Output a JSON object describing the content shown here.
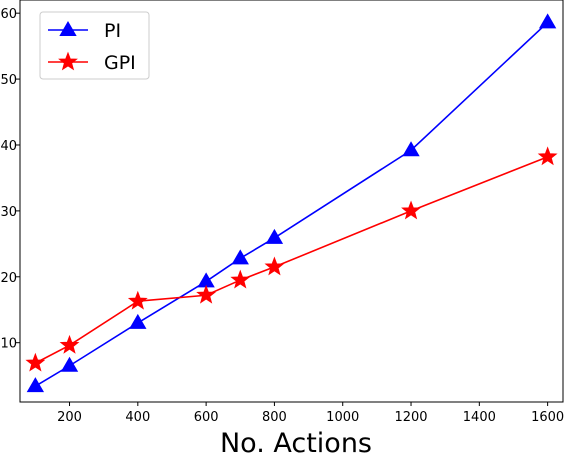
{
  "chart_data": {
    "type": "line",
    "title": "",
    "xlabel": "No. Actions",
    "ylabel": "",
    "xlim": [
      55,
      1645
    ],
    "ylim": [
      1,
      62
    ],
    "xticks": [
      200,
      400,
      600,
      800,
      1000,
      1200,
      1400,
      1600
    ],
    "yticks": [
      10,
      20,
      30,
      40,
      50,
      60
    ],
    "grid": false,
    "legend_position": "top-left",
    "series": [
      {
        "name": "PI",
        "color": "#0000ff",
        "marker": "triangle",
        "x": [
          100,
          200,
          400,
          600,
          700,
          800,
          1200,
          1600
        ],
        "y": [
          3.4,
          6.5,
          13.0,
          19.3,
          22.8,
          25.9,
          39.2,
          58.6
        ]
      },
      {
        "name": "GPI",
        "color": "#ff0000",
        "marker": "star",
        "x": [
          100,
          200,
          400,
          600,
          700,
          800,
          1200,
          1600
        ],
        "y": [
          6.9,
          9.6,
          16.3,
          17.2,
          19.5,
          21.5,
          30.0,
          38.2
        ]
      }
    ]
  }
}
